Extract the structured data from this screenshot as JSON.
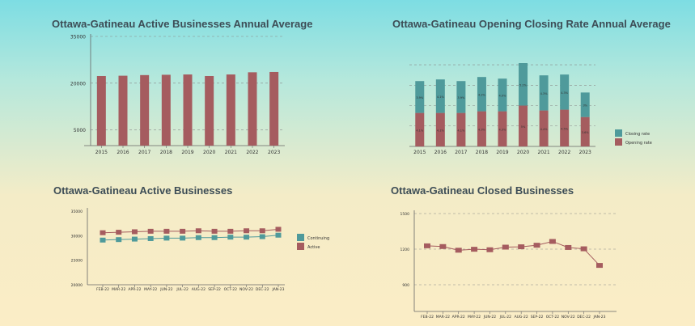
{
  "colors": {
    "bar_red": "#a55c5f",
    "teal": "#4f9a9b",
    "axis": "#666666",
    "grid": "#8a8a8a"
  },
  "chart_data": [
    {
      "id": "active_annual",
      "type": "bar",
      "title": "Ottawa-Gatineau Active Businesses Annual Average",
      "categories": [
        "2015",
        "2016",
        "2017",
        "2018",
        "2019",
        "2020",
        "2021",
        "2022",
        "2023"
      ],
      "values": [
        22300,
        22400,
        22600,
        22700,
        22800,
        22300,
        22800,
        23500,
        23600
      ],
      "yticks": [
        5000,
        20000,
        35000
      ],
      "ylim": [
        0,
        35000
      ],
      "grid": true
    },
    {
      "id": "opening_closing",
      "type": "bar",
      "stacked": true,
      "title": "Ottawa-Gatineau Opening Closing Rate Annual Average",
      "categories": [
        "2015",
        "2016",
        "2017",
        "2018",
        "2019",
        "2020",
        "2021",
        "2022",
        "2023"
      ],
      "series": [
        {
          "name": "Opening rate",
          "values": [
            4.1,
            4.1,
            4.1,
            4.3,
            4.3,
            5,
            4.4,
            4.5,
            3.6
          ],
          "labels": [
            "4.1%",
            "4.1%",
            "4.1%",
            "4.3%",
            "4.3%",
            "5%",
            "4.4%",
            "4.5%",
            "3.6%"
          ]
        },
        {
          "name": "Closing rate",
          "values": [
            3.9,
            4.1,
            3.9,
            4.2,
            4.0,
            5.2,
            4.3,
            4.3,
            3.0
          ],
          "labels": [
            "3.9%",
            "4.1%",
            "3.9%",
            "4.2%",
            "4.0%",
            "5.2%",
            "4.3%",
            "4.3%",
            "3%"
          ]
        }
      ],
      "legend": "right",
      "grid": true
    },
    {
      "id": "active_monthly",
      "type": "line",
      "title": "Ottawa-Gatineau Active Businesses",
      "categories": [
        "FEB-22",
        "MAR-22",
        "APR-22",
        "MAY-22",
        "JUN-22",
        "JUL-22",
        "AUG-22",
        "SEP-22",
        "OCT-22",
        "NOV-22",
        "DEC-22",
        "JAN-23"
      ],
      "series": [
        {
          "name": "Continuing",
          "values": [
            29100,
            29200,
            29300,
            29400,
            29500,
            29500,
            29600,
            29600,
            29700,
            29700,
            29800,
            30100
          ]
        },
        {
          "name": "Active",
          "values": [
            30600,
            30700,
            30800,
            30900,
            30900,
            30900,
            31000,
            30900,
            30900,
            31000,
            31000,
            31300
          ]
        }
      ],
      "yticks": [
        20000,
        25000,
        30000,
        35000
      ],
      "ylim": [
        20000,
        35000
      ],
      "legend": "right"
    },
    {
      "id": "closed_monthly",
      "type": "line",
      "title": "Ottawa-Gatineau Closed Businesses",
      "categories": [
        "FEB-22",
        "MAR-22",
        "APR-22",
        "MAY-22",
        "JUN-22",
        "JUL-22",
        "AUG-22",
        "SEP-22",
        "OCT-22",
        "NOV-22",
        "DEC-22",
        "JAN-23"
      ],
      "series": [
        {
          "name": "Closed",
          "values": [
            1228,
            1222,
            1191,
            1199,
            1195,
            1217,
            1220,
            1233,
            1265,
            1214,
            1203,
            1063
          ]
        }
      ],
      "yticks": [
        900,
        1200,
        1500
      ],
      "ylim": [
        900,
        1500
      ],
      "grid": true
    }
  ]
}
